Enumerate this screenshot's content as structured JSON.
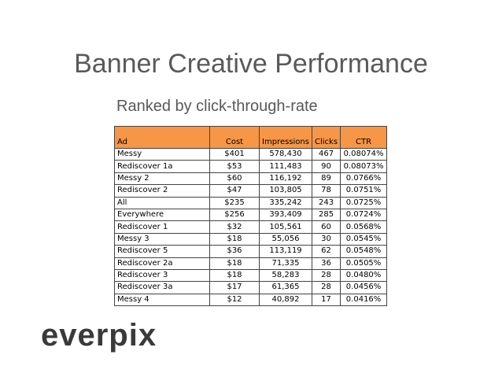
{
  "title": "Banner Creative Performance",
  "subtitle": "Ranked by click-through-rate",
  "table": {
    "header": [
      "Ad",
      "Cost",
      "Impressions",
      "Clicks",
      "CTR"
    ],
    "rows": [
      [
        "Messy",
        "$401",
        "578,430",
        "467",
        "0.08074%"
      ],
      [
        "Rediscover 1a",
        "$53",
        "111,483",
        "90",
        "0.08073%"
      ],
      [
        "Messy 2",
        "$60",
        "116,192",
        "89",
        "0.0766%"
      ],
      [
        "Rediscover 2",
        "$47",
        "103,805",
        "78",
        "0.0751%"
      ],
      [
        "All",
        "$235",
        "335,242",
        "243",
        "0.0725%"
      ],
      [
        "Everywhere",
        "$256",
        "393,409",
        "285",
        "0.0724%"
      ],
      [
        "Rediscover 1",
        "$32",
        "105,561",
        "60",
        "0.0568%"
      ],
      [
        "Messy 3",
        "$18",
        "55,056",
        "30",
        "0.0545%"
      ],
      [
        "Rediscover 5",
        "$36",
        "113,119",
        "62",
        "0.0548%"
      ],
      [
        "Rediscover 2a",
        "$18",
        "71,335",
        "36",
        "0.0505%"
      ],
      [
        "Rediscover 3",
        "$18",
        "58,283",
        "28",
        "0.0480%"
      ],
      [
        "Rediscover 3a",
        "$17",
        "61,365",
        "28",
        "0.0456%"
      ],
      [
        "Messy 4",
        "$12",
        "40,892",
        "17",
        "0.0416%"
      ]
    ]
  },
  "logo": "everpix"
}
